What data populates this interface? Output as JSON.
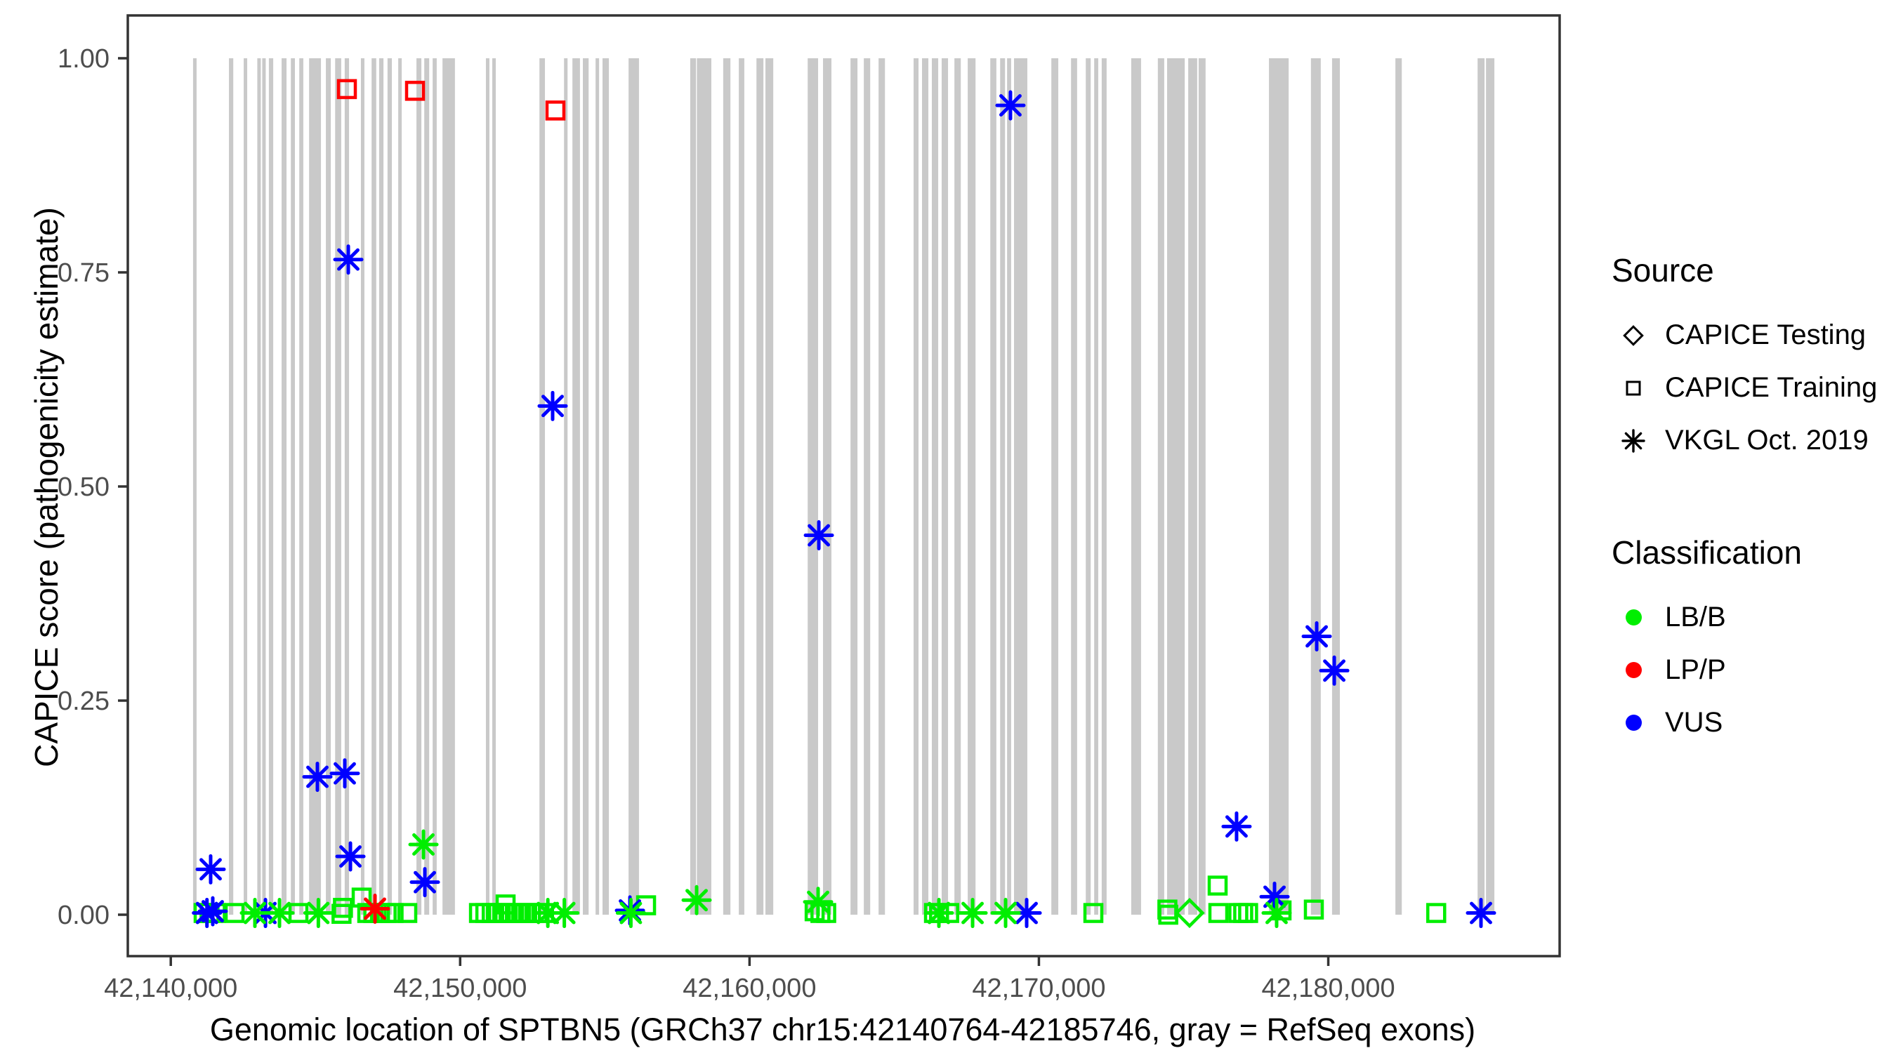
{
  "figure": {
    "y_axis_title": "CAPICE score (pathogenicity estimate)",
    "x_axis_title": "Genomic location of SPTBN5 (GRCh37 chr15:42140764-42185746, gray = RefSeq exons)"
  },
  "legend": {
    "source": {
      "title": "Source",
      "items": [
        {
          "label": "CAPICE Testing",
          "marker": "diamond"
        },
        {
          "label": "CAPICE Training",
          "marker": "square"
        },
        {
          "label": "VKGL Oct. 2019",
          "marker": "asterisk"
        }
      ]
    },
    "classification": {
      "title": "Classification",
      "items": [
        {
          "label": "LB/B",
          "color": "#00EE00"
        },
        {
          "label": "LP/P",
          "color": "#FF0000"
        },
        {
          "label": "VUS",
          "color": "#0000FF"
        }
      ]
    }
  },
  "chart_data": {
    "type": "scatter",
    "title": "",
    "xlabel": "Genomic location of SPTBN5 (GRCh37 chr15:42140764-42185746, gray = RefSeq exons)",
    "ylabel": "CAPICE score (pathogenicity estimate)",
    "gene": "SPTBN5",
    "assembly": "GRCh37",
    "region": "chr15:42140764-42185746",
    "ylim": [
      0,
      1
    ],
    "x_range_bp": [
      42138515,
      42187995
    ],
    "x_ticks": [
      {
        "value": 42140000,
        "label": "42,140,000"
      },
      {
        "value": 42150000,
        "label": "42,150,000"
      },
      {
        "value": 42160000,
        "label": "42,160,000"
      },
      {
        "value": 42170000,
        "label": "42,170,000"
      },
      {
        "value": 42180000,
        "label": "42,180,000"
      }
    ],
    "y_ticks": [
      {
        "value": 0.0,
        "label": "0.00"
      },
      {
        "value": 0.25,
        "label": "0.25"
      },
      {
        "value": 0.5,
        "label": "0.50"
      },
      {
        "value": 0.75,
        "label": "0.75"
      },
      {
        "value": 1.0,
        "label": "1.00"
      }
    ],
    "exon_color": "#C9C9C9",
    "class_colors": {
      "LB/B": "#00EE00",
      "LP/P": "#FF0000",
      "VUS": "#0000FF"
    },
    "exons_gray_bp": [
      [
        42140770,
        42140890
      ],
      [
        42142010,
        42142160
      ],
      [
        42142520,
        42142640
      ],
      [
        42142990,
        42143110
      ],
      [
        42143160,
        42143280
      ],
      [
        42143390,
        42143540
      ],
      [
        42143830,
        42144000
      ],
      [
        42144150,
        42144290
      ],
      [
        42144440,
        42144580
      ],
      [
        42144780,
        42145190
      ],
      [
        42145360,
        42145530
      ],
      [
        42145680,
        42145890
      ],
      [
        42146010,
        42146160
      ],
      [
        42146570,
        42146690
      ],
      [
        42146940,
        42147100
      ],
      [
        42147200,
        42147350
      ],
      [
        42147490,
        42147640
      ],
      [
        42147860,
        42147960
      ],
      [
        42148490,
        42148660
      ],
      [
        42148760,
        42148930
      ],
      [
        42149050,
        42149190
      ],
      [
        42149390,
        42149820
      ],
      [
        42150890,
        42151010
      ],
      [
        42151110,
        42151230
      ],
      [
        42152740,
        42152930
      ],
      [
        42153590,
        42153710
      ],
      [
        42153880,
        42154140
      ],
      [
        42154240,
        42154440
      ],
      [
        42154680,
        42154800
      ],
      [
        42154920,
        42155140
      ],
      [
        42155820,
        42156180
      ],
      [
        42157950,
        42158150
      ],
      [
        42158180,
        42158680
      ],
      [
        42159090,
        42159340
      ],
      [
        42159630,
        42159820
      ],
      [
        42160240,
        42160480
      ],
      [
        42160550,
        42160820
      ],
      [
        42162010,
        42162370
      ],
      [
        42162540,
        42162830
      ],
      [
        42163490,
        42163730
      ],
      [
        42163950,
        42164170
      ],
      [
        42164460,
        42164680
      ],
      [
        42165670,
        42165840
      ],
      [
        42165960,
        42166180
      ],
      [
        42166300,
        42166520
      ],
      [
        42166640,
        42166860
      ],
      [
        42167080,
        42167300
      ],
      [
        42167540,
        42167810
      ],
      [
        42168320,
        42168530
      ],
      [
        42168660,
        42168830
      ],
      [
        42168900,
        42169040
      ],
      [
        42169140,
        42169600
      ],
      [
        42170430,
        42170670
      ],
      [
        42171110,
        42171320
      ],
      [
        42171620,
        42171790
      ],
      [
        42171910,
        42172050
      ],
      [
        42172170,
        42172340
      ],
      [
        42173190,
        42173530
      ],
      [
        42174110,
        42174330
      ],
      [
        42174430,
        42175040
      ],
      [
        42175160,
        42175470
      ],
      [
        42175520,
        42175760
      ],
      [
        42177950,
        42178630
      ],
      [
        42179400,
        42179740
      ],
      [
        42180130,
        42180400
      ],
      [
        42182320,
        42182540
      ],
      [
        42185160,
        42185400
      ],
      [
        42185450,
        42185740
      ]
    ],
    "series": [
      {
        "name": "CAPICE Testing",
        "marker": "diamond",
        "points": [
          {
            "x": 42175206,
            "y": 0.002,
            "class": "LB/B"
          }
        ]
      },
      {
        "name": "CAPICE Training",
        "marker": "square",
        "points": [
          {
            "x": 42146086,
            "y": 0.964,
            "class": "LP/P"
          },
          {
            "x": 42148440,
            "y": 0.962,
            "class": "LP/P"
          },
          {
            "x": 42153293,
            "y": 0.939,
            "class": "LP/P"
          },
          {
            "x": 42141135,
            "y": 0.002,
            "class": "LB/B"
          },
          {
            "x": 42141340,
            "y": 0.002,
            "class": "LB/B"
          },
          {
            "x": 42141560,
            "y": 0.002,
            "class": "LB/B"
          },
          {
            "x": 42142204,
            "y": 0.002,
            "class": "LB/B"
          },
          {
            "x": 42144412,
            "y": 0.002,
            "class": "LB/B"
          },
          {
            "x": 42145900,
            "y": 0.001,
            "class": "LB/B"
          },
          {
            "x": 42145950,
            "y": 0.008,
            "class": "LB/B"
          },
          {
            "x": 42146596,
            "y": 0.02,
            "class": "LB/B"
          },
          {
            "x": 42146790,
            "y": 0.002,
            "class": "LB/B"
          },
          {
            "x": 42147000,
            "y": 0.002,
            "class": "LB/B"
          },
          {
            "x": 42147230,
            "y": 0.002,
            "class": "LB/B"
          },
          {
            "x": 42147460,
            "y": 0.002,
            "class": "LB/B"
          },
          {
            "x": 42147700,
            "y": 0.002,
            "class": "LB/B"
          },
          {
            "x": 42148173,
            "y": 0.002,
            "class": "LB/B"
          },
          {
            "x": 42150650,
            "y": 0.002,
            "class": "LB/B"
          },
          {
            "x": 42150870,
            "y": 0.002,
            "class": "LB/B"
          },
          {
            "x": 42151090,
            "y": 0.002,
            "class": "LB/B"
          },
          {
            "x": 42151310,
            "y": 0.002,
            "class": "LB/B"
          },
          {
            "x": 42151530,
            "y": 0.002,
            "class": "LB/B"
          },
          {
            "x": 42151571,
            "y": 0.012,
            "class": "LB/B"
          },
          {
            "x": 42151760,
            "y": 0.002,
            "class": "LB/B"
          },
          {
            "x": 42151990,
            "y": 0.002,
            "class": "LB/B"
          },
          {
            "x": 42152220,
            "y": 0.002,
            "class": "LB/B"
          },
          {
            "x": 42152450,
            "y": 0.002,
            "class": "LB/B"
          },
          {
            "x": 42152680,
            "y": 0.002,
            "class": "LB/B"
          },
          {
            "x": 42152900,
            "y": 0.002,
            "class": "LB/B"
          },
          {
            "x": 42156425,
            "y": 0.011,
            "class": "LB/B"
          },
          {
            "x": 42162250,
            "y": 0.004,
            "class": "LB/B"
          },
          {
            "x": 42162450,
            "y": 0.002,
            "class": "LB/B"
          },
          {
            "x": 42162650,
            "y": 0.002,
            "class": "LB/B"
          },
          {
            "x": 42166374,
            "y": 0.002,
            "class": "LB/B"
          },
          {
            "x": 42166550,
            "y": 0.002,
            "class": "LB/B"
          },
          {
            "x": 42166900,
            "y": 0.002,
            "class": "LB/B"
          },
          {
            "x": 42171882,
            "y": 0.002,
            "class": "LB/B"
          },
          {
            "x": 42174440,
            "y": 0.006,
            "class": "LB/B"
          },
          {
            "x": 42174470,
            "y": 0.0,
            "class": "LB/B"
          },
          {
            "x": 42176177,
            "y": 0.034,
            "class": "LB/B"
          },
          {
            "x": 42176201,
            "y": 0.002,
            "class": "LB/B"
          },
          {
            "x": 42176890,
            "y": 0.002,
            "class": "LB/B"
          },
          {
            "x": 42177060,
            "y": 0.002,
            "class": "LB/B"
          },
          {
            "x": 42177230,
            "y": 0.002,
            "class": "LB/B"
          },
          {
            "x": 42178385,
            "y": 0.005,
            "class": "LB/B"
          },
          {
            "x": 42179501,
            "y": 0.006,
            "class": "LB/B"
          },
          {
            "x": 42183730,
            "y": 0.002,
            "class": "LB/B"
          }
        ]
      },
      {
        "name": "VKGL Oct. 2019",
        "marker": "asterisk",
        "points": [
          {
            "x": 42141250,
            "y": 0.002,
            "class": "VUS"
          },
          {
            "x": 42141378,
            "y": 0.053,
            "class": "VUS"
          },
          {
            "x": 42141451,
            "y": 0.004,
            "class": "VUS"
          },
          {
            "x": 42143272,
            "y": 0.002,
            "class": "VUS"
          },
          {
            "x": 42145067,
            "y": 0.161,
            "class": "VUS"
          },
          {
            "x": 42146013,
            "y": 0.165,
            "class": "VUS"
          },
          {
            "x": 42146135,
            "y": 0.765,
            "class": "VUS"
          },
          {
            "x": 42146208,
            "y": 0.068,
            "class": "VUS"
          },
          {
            "x": 42148780,
            "y": 0.038,
            "class": "VUS"
          },
          {
            "x": 42153196,
            "y": 0.594,
            "class": "VUS"
          },
          {
            "x": 42155867,
            "y": 0.005,
            "class": "VUS"
          },
          {
            "x": 42162395,
            "y": 0.443,
            "class": "VUS"
          },
          {
            "x": 42169017,
            "y": 0.945,
            "class": "VUS"
          },
          {
            "x": 42169577,
            "y": 0.002,
            "class": "VUS"
          },
          {
            "x": 42176831,
            "y": 0.103,
            "class": "VUS"
          },
          {
            "x": 42178143,
            "y": 0.021,
            "class": "VUS"
          },
          {
            "x": 42179600,
            "y": 0.325,
            "class": "VUS"
          },
          {
            "x": 42180207,
            "y": 0.285,
            "class": "VUS"
          },
          {
            "x": 42185277,
            "y": 0.002,
            "class": "VUS"
          },
          {
            "x": 42142907,
            "y": 0.002,
            "class": "LB/B"
          },
          {
            "x": 42143757,
            "y": 0.002,
            "class": "LB/B"
          },
          {
            "x": 42145100,
            "y": 0.002,
            "class": "LB/B"
          },
          {
            "x": 42148732,
            "y": 0.082,
            "class": "LB/B"
          },
          {
            "x": 42153030,
            "y": 0.002,
            "class": "LB/B"
          },
          {
            "x": 42153600,
            "y": 0.002,
            "class": "LB/B"
          },
          {
            "x": 42155900,
            "y": 0.002,
            "class": "LB/B"
          },
          {
            "x": 42158172,
            "y": 0.017,
            "class": "LB/B"
          },
          {
            "x": 42162370,
            "y": 0.015,
            "class": "LB/B"
          },
          {
            "x": 42166544,
            "y": 0.002,
            "class": "LB/B"
          },
          {
            "x": 42167709,
            "y": 0.002,
            "class": "LB/B"
          },
          {
            "x": 42168849,
            "y": 0.002,
            "class": "LB/B"
          },
          {
            "x": 42178215,
            "y": 0.002,
            "class": "LB/B"
          },
          {
            "x": 42147057,
            "y": 0.007,
            "class": "LP/P"
          }
        ]
      }
    ]
  }
}
